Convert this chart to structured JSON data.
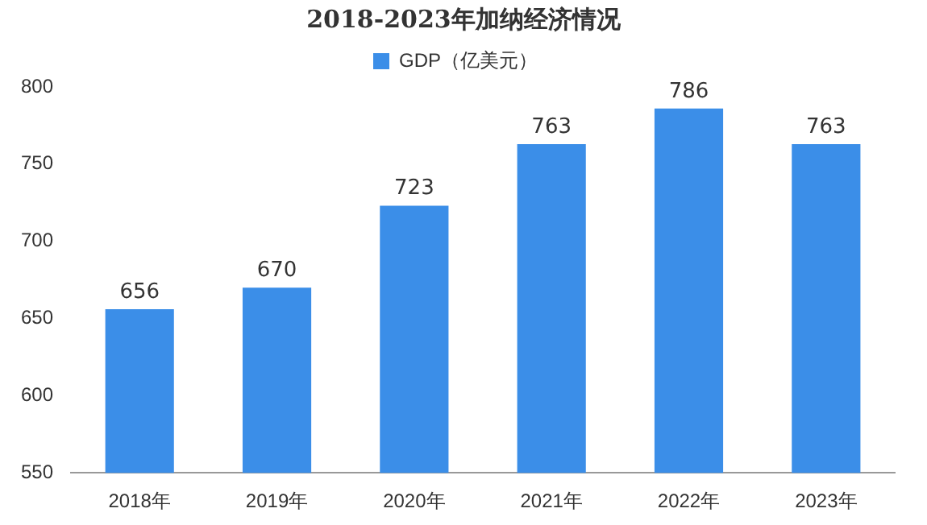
{
  "chart_data": {
    "type": "bar",
    "title": "2018-2023年加纳经济情况",
    "categories": [
      "2018年",
      "2019年",
      "2020年",
      "2021年",
      "2022年",
      "2023年"
    ],
    "series": [
      {
        "name": "GDP（亿美元）",
        "color": "#3b8ee8",
        "values": [
          656,
          670,
          723,
          763,
          786,
          763
        ]
      }
    ],
    "ylim": [
      550,
      800
    ],
    "yticks": [
      550,
      600,
      650,
      700,
      750,
      800
    ],
    "grid": false,
    "legend": "top",
    "data_labels": true
  }
}
